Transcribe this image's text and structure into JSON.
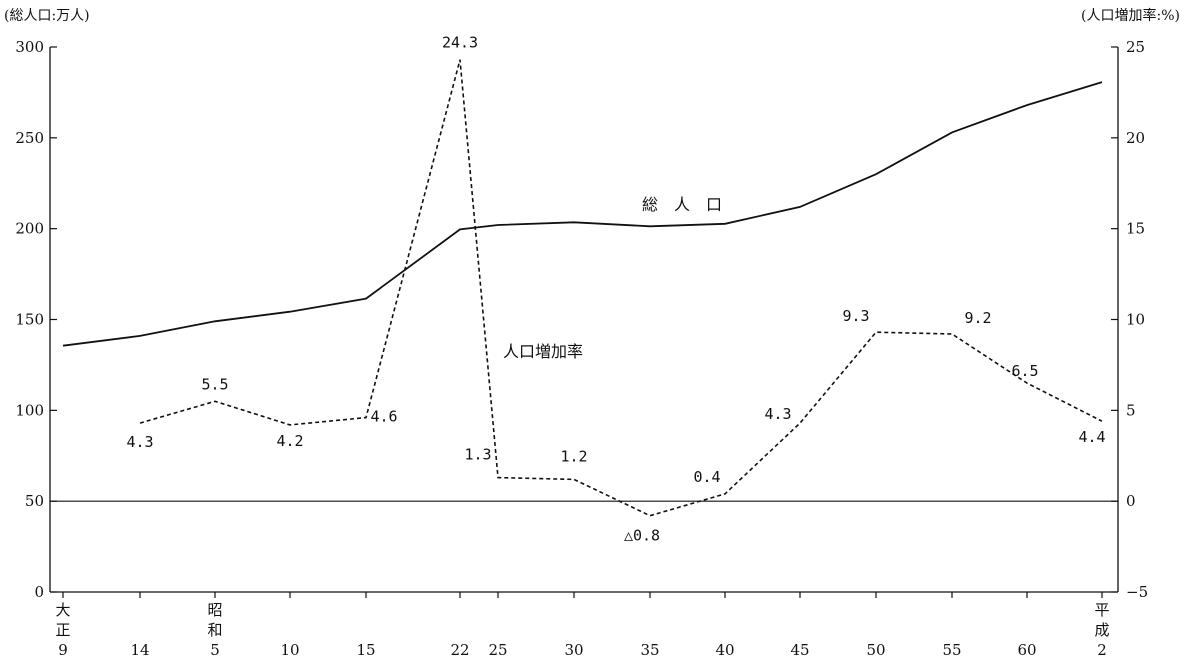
{
  "chart_data": {
    "type": "line",
    "left_axis_title": "(総人口:万人)",
    "right_axis_title": "(人口増加率:%)",
    "ylim_left": [
      0,
      300
    ],
    "yticks_left": [
      0,
      50,
      100,
      150,
      200,
      250,
      300
    ],
    "ylim_right": [
      -5,
      25
    ],
    "yticks_right": [
      "−5",
      "0",
      "5",
      "10",
      "15",
      "20",
      "25"
    ],
    "x_ticks": [
      {
        "top": "大",
        "mid": "正",
        "bot": "9"
      },
      {
        "top": "",
        "mid": "",
        "bot": "14"
      },
      {
        "top": "昭",
        "mid": "和",
        "bot": "5"
      },
      {
        "top": "",
        "mid": "",
        "bot": "10"
      },
      {
        "top": "",
        "mid": "",
        "bot": "15"
      },
      {
        "top": "",
        "mid": "",
        "bot": "22"
      },
      {
        "top": "",
        "mid": "",
        "bot": "25"
      },
      {
        "top": "",
        "mid": "",
        "bot": "30"
      },
      {
        "top": "",
        "mid": "",
        "bot": "35"
      },
      {
        "top": "",
        "mid": "",
        "bot": "40"
      },
      {
        "top": "",
        "mid": "",
        "bot": "45"
      },
      {
        "top": "",
        "mid": "",
        "bot": "50"
      },
      {
        "top": "",
        "mid": "",
        "bot": "55"
      },
      {
        "top": "",
        "mid": "",
        "bot": "60"
      },
      {
        "top": "平",
        "mid": "成",
        "bot": "2"
      }
    ],
    "series": [
      {
        "name": "総　人　口",
        "axis": "left",
        "style": "solid",
        "values": [
          135.6,
          141,
          149,
          154.3,
          161.5,
          199.6,
          202,
          203.5,
          201.3,
          202.7,
          212,
          230,
          253,
          268,
          280.7
        ]
      },
      {
        "name": "人口増加率",
        "axis": "right",
        "style": "dashed",
        "values": [
          null,
          4.3,
          5.5,
          4.2,
          4.6,
          24.3,
          1.3,
          1.2,
          -0.8,
          0.4,
          4.3,
          9.3,
          9.2,
          6.5,
          4.4
        ],
        "labels": [
          null,
          "4.3",
          "5.5",
          "4.2",
          "4.6",
          "24.3",
          "1.3",
          "1.2",
          "△0.8",
          "0.4",
          "4.3",
          "9.3",
          "9.2",
          "6.5",
          "4.4"
        ]
      }
    ],
    "grid": false
  }
}
